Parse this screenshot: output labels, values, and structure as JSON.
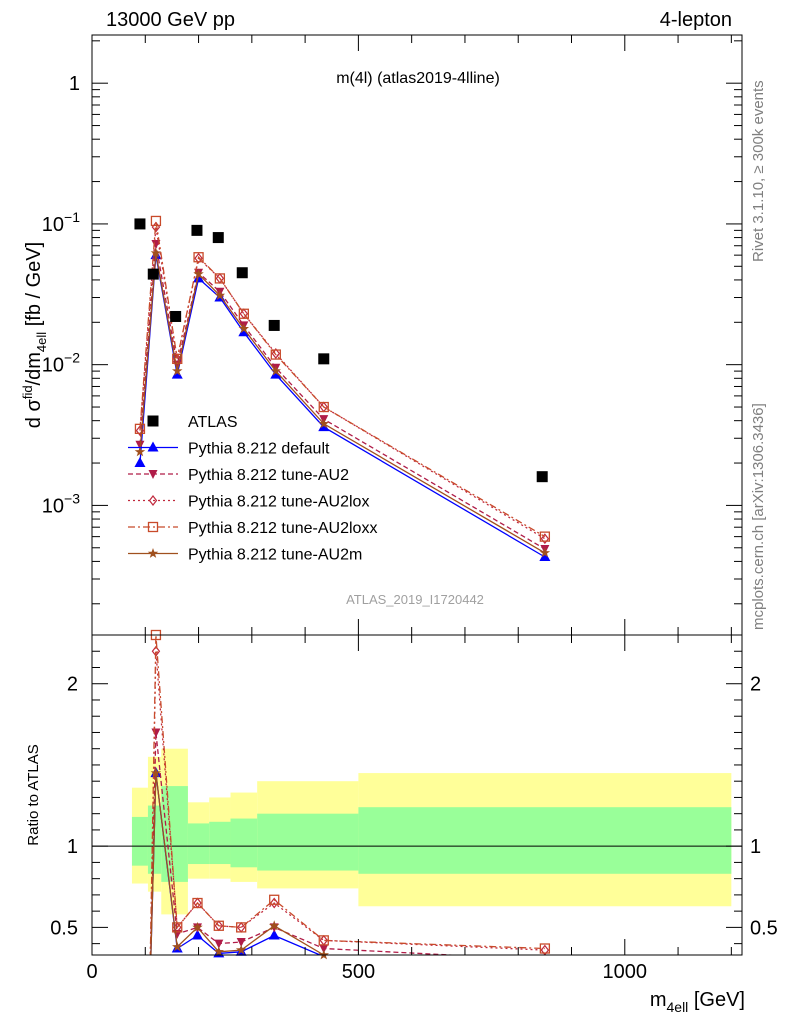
{
  "header": {
    "left": "13000 GeV pp",
    "right": "4-lepton"
  },
  "plot_title": "m(4l) (atlas2019-4lline)",
  "watermark": "ATLAS_2019_I1720442",
  "side_texts": {
    "top": "Rivet 3.1.10, ≥ 300k events",
    "bottom": "mcplots.cern.ch [arXiv:1306.3436]"
  },
  "chart_data": [
    {
      "type": "scatter",
      "panel": "main",
      "ylabel": "d σᶠⁱd₄ₑₗₗ/dm₄ₑₗₗ [fb / GeV]",
      "yscale": "log",
      "xlim": [
        0,
        1220
      ],
      "ylim": [
        0.00012,
        2.2
      ],
      "y_ticks": [
        {
          "v": 0.001,
          "b": "10",
          "e": "−3"
        },
        {
          "v": 0.01,
          "b": "10",
          "e": "−2"
        },
        {
          "v": 0.1,
          "b": "10",
          "e": "−1"
        },
        {
          "v": 1,
          "b": "1",
          "e": ""
        }
      ],
      "x": [
        90,
        120,
        160,
        200,
        240,
        285,
        345,
        435,
        850
      ],
      "series": [
        {
          "name": "ATLAS",
          "color": "#000000",
          "marker": "square",
          "values": [
            0.1,
            0.044,
            0.022,
            0.09,
            0.08,
            0.045,
            0.019,
            0.011,
            0.0016
          ],
          "x": [
            90,
            115,
            157,
            197,
            237,
            282,
            342,
            435,
            845
          ]
        },
        {
          "name": "Pythia 8.212 default",
          "color": "#0000ff",
          "dash": "",
          "marker": "triangle-up",
          "values": [
            0.002,
            0.06,
            0.0085,
            0.041,
            0.03,
            0.017,
            0.0085,
            0.0036,
            0.00043
          ]
        },
        {
          "name": "Pythia 8.212 tune-AU2",
          "color": "#b01c48",
          "dash": "5,3",
          "marker": "triangle-down",
          "values": [
            0.0027,
            0.072,
            0.01,
            0.045,
            0.033,
            0.019,
            0.0095,
            0.0041,
            0.00049
          ]
        },
        {
          "name": "Pythia 8.212 tune-AU2lox",
          "color": "#c0283c",
          "dash": "2,3",
          "marker": "diamond",
          "values": [
            0.0034,
            0.095,
            0.011,
            0.057,
            0.041,
            0.023,
            0.012,
            0.005,
            0.00058
          ]
        },
        {
          "name": "Pythia 8.212 tune-AU2loxx",
          "color": "#c84a2a",
          "dash": "7,3,2,3",
          "marker": "square-open",
          "values": [
            0.0035,
            0.105,
            0.011,
            0.058,
            0.041,
            0.023,
            0.0118,
            0.005,
            0.0006
          ]
        },
        {
          "name": "Pythia 8.212 tune-AU2m",
          "color": "#a0501e",
          "dash": "",
          "marker": "star",
          "values": [
            0.0024,
            0.062,
            0.009,
            0.044,
            0.031,
            0.018,
            0.009,
            0.0038,
            0.00046
          ]
        }
      ]
    },
    {
      "type": "line",
      "panel": "ratio",
      "ylabel": "Ratio to ATLAS",
      "xlabel_main": "m",
      "xlabel_sub": "4ell",
      "xlabel_unit": " [GeV]",
      "xlim": [
        0,
        1220
      ],
      "ylim": [
        0.33,
        2.3
      ],
      "x_ticks": [
        0,
        500,
        1000
      ],
      "y_ticks": [
        0.5,
        1,
        2
      ],
      "bands": [
        {
          "x0": 75,
          "x1": 105,
          "yellow": [
            0.77,
            1.36
          ],
          "green": [
            0.88,
            1.18
          ]
        },
        {
          "x0": 105,
          "x1": 130,
          "yellow": [
            0.72,
            1.55
          ],
          "green": [
            0.83,
            1.25
          ]
        },
        {
          "x0": 130,
          "x1": 180,
          "yellow": [
            0.58,
            1.6
          ],
          "green": [
            0.78,
            1.37
          ]
        },
        {
          "x0": 180,
          "x1": 220,
          "yellow": [
            0.8,
            1.27
          ],
          "green": [
            0.89,
            1.14
          ]
        },
        {
          "x0": 220,
          "x1": 260,
          "yellow": [
            0.8,
            1.3
          ],
          "green": [
            0.89,
            1.15
          ]
        },
        {
          "x0": 260,
          "x1": 310,
          "yellow": [
            0.78,
            1.33
          ],
          "green": [
            0.87,
            1.17
          ]
        },
        {
          "x0": 310,
          "x1": 500,
          "yellow": [
            0.74,
            1.4
          ],
          "green": [
            0.85,
            1.2
          ]
        },
        {
          "x0": 500,
          "x1": 1200,
          "yellow": [
            0.63,
            1.45
          ],
          "green": [
            0.83,
            1.24
          ]
        }
      ],
      "x": [
        108,
        120,
        160,
        198,
        238,
        280,
        342,
        435,
        850
      ],
      "series": [
        {
          "name": "Pythia 8.212 default",
          "values": [
            0.02,
            1.45,
            0.37,
            0.45,
            0.34,
            0.35,
            0.45,
            0.32,
            0.27
          ]
        },
        {
          "name": "Pythia 8.212 tune-AU2",
          "values": [
            0.03,
            1.7,
            0.46,
            0.5,
            0.4,
            0.41,
            0.5,
            0.37,
            0.3
          ]
        },
        {
          "name": "Pythia 8.212 tune-AU2lox",
          "values": [
            0.03,
            2.2,
            0.5,
            0.65,
            0.51,
            0.5,
            0.65,
            0.42,
            0.36
          ]
        },
        {
          "name": "Pythia 8.212 tune-AU2loxx",
          "values": [
            0.03,
            2.3,
            0.5,
            0.65,
            0.51,
            0.5,
            0.67,
            0.42,
            0.37
          ]
        },
        {
          "name": "Pythia 8.212 tune-AU2m",
          "values": [
            0.02,
            1.45,
            0.38,
            0.5,
            0.35,
            0.36,
            0.51,
            0.33,
            0.28
          ]
        }
      ]
    }
  ]
}
